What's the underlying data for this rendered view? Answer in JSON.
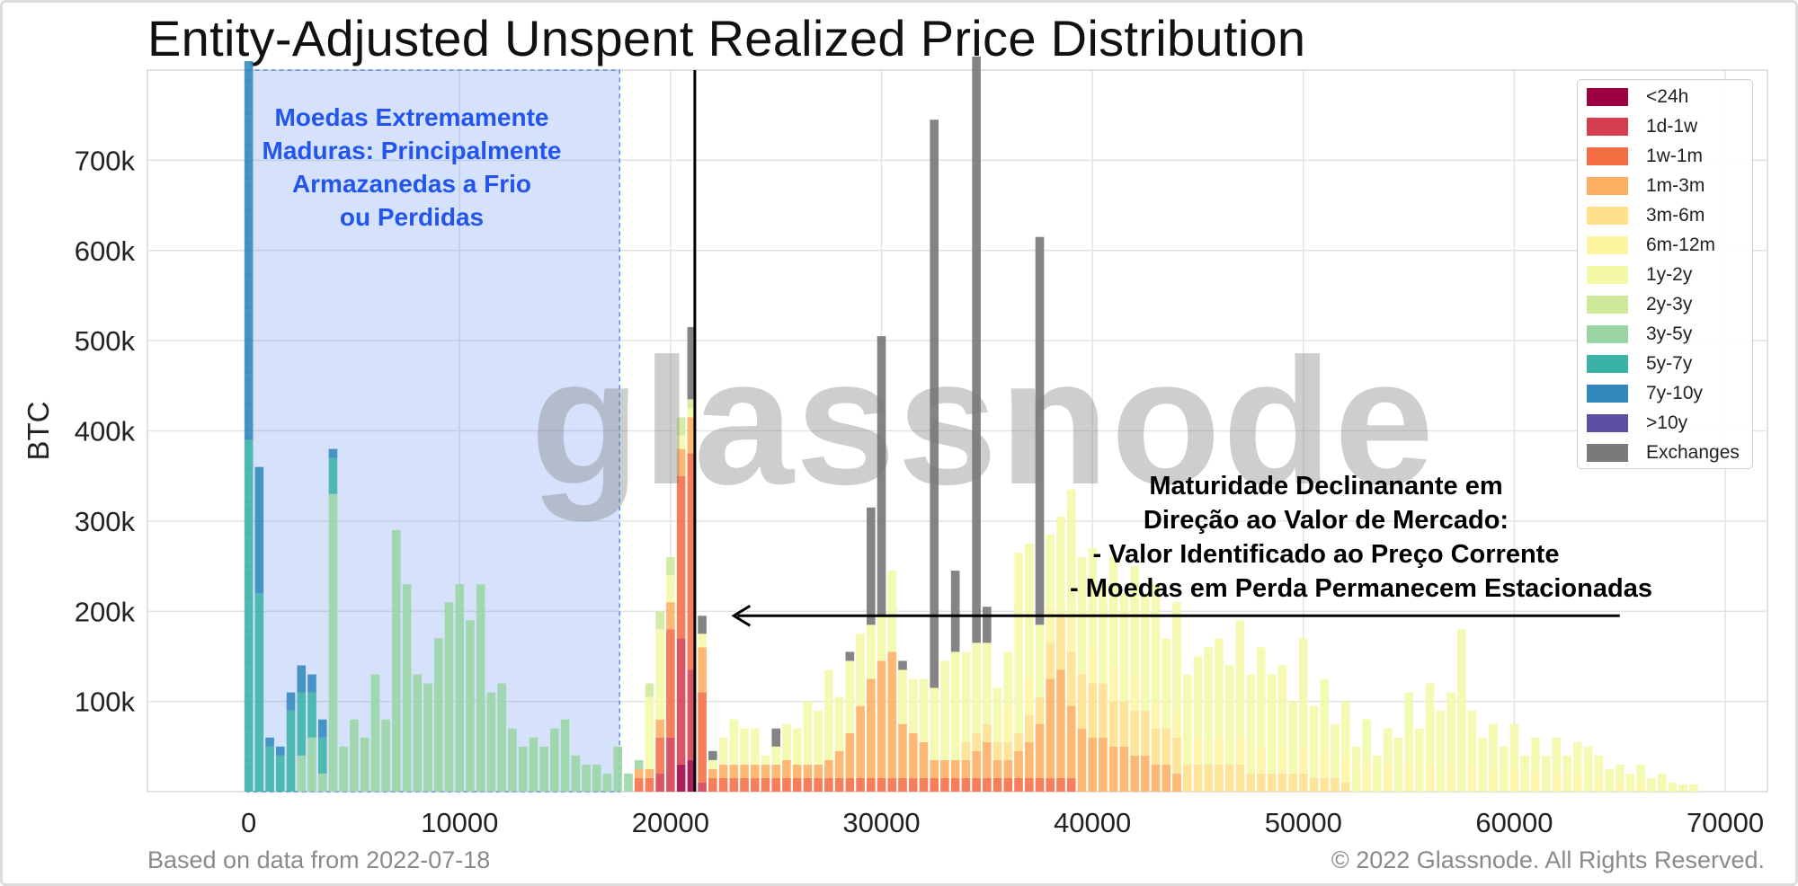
{
  "title": "Entity-Adjusted Unspent Realized Price Distribution",
  "footer": {
    "left": "Based on data from 2022-07-18",
    "right": "© 2022 Glassnode. All Rights Reserved."
  },
  "watermark": "glassnode",
  "colors": {
    "<24h": "#9e0142",
    "1d-1w": "#d53e4f",
    "1w-1m": "#f46d43",
    "1m-3m": "#fdae61",
    "3m-6m": "#fee08b",
    "6m-12m": "#fef5a0",
    "1y-2y": "#f4f9a8",
    "2y-3y": "#cfe99a",
    "3y-5y": "#99d5a4",
    "5y-7y": "#3ab3a6",
    "7y-10y": "#3288bd",
    ">10y": "#5e4fa2",
    "Exchanges": "#7a7a7a",
    "highlight": "#2255ee"
  },
  "annotations": {
    "left_lines": [
      "Moedas Extremamente",
      "Maduras: Principalmente",
      "Armazanedas a Frio",
      "ou Perdidas"
    ],
    "right_lines": [
      "Maturidade Declinanante em",
      "Direção ao Valor de Mercado:",
      "- Valor Identificado ao Preço Corrente",
      "- Moedas em Perda Permanecem Estacionadas"
    ]
  },
  "chart_data": {
    "type": "bar",
    "stacked": true,
    "title": "Entity-Adjusted Unspent Realized Price Distribution",
    "xlabel": "",
    "ylabel": "BTC",
    "xlim": [
      -4800,
      72000
    ],
    "ylim": [
      0,
      800000
    ],
    "xticks": [
      0,
      10000,
      20000,
      30000,
      40000,
      50000,
      60000,
      70000
    ],
    "yticks": [
      100000,
      200000,
      300000,
      400000,
      500000,
      600000,
      700000
    ],
    "ytick_labels": [
      "100k",
      "200k",
      "300k",
      "400k",
      "500k",
      "600k",
      "700k"
    ],
    "grid": true,
    "legend_position": "top-right",
    "bin_width": 500,
    "market_price_line_x": 21150,
    "highlight_region_x": [
      0,
      17500
    ],
    "arrow": {
      "from_x": 65000,
      "to_x": 23000,
      "y": 195000
    },
    "series": [
      {
        "name": "<24h",
        "x": [
          20500,
          21000
        ],
        "values": [
          30000,
          35000
        ]
      },
      {
        "name": "1d-1w",
        "x": [
          19500,
          20000,
          20500,
          21000,
          21500
        ],
        "values": [
          20000,
          60000,
          140000,
          100000,
          10000
        ]
      },
      {
        "name": "1w-1m",
        "x": [
          18500,
          19000,
          19500,
          20000,
          20500,
          21000,
          21500,
          22000,
          22500,
          23000,
          23500,
          24000,
          24500,
          25000,
          25500,
          26000,
          26500,
          27000,
          27500,
          28000,
          28500,
          29000,
          29500,
          30000,
          30500,
          31000,
          31500,
          32000,
          32500,
          33000,
          33500,
          34000,
          34500,
          35000,
          35500,
          36000,
          36500,
          37000,
          37500,
          38000,
          38500,
          39000
        ],
        "values": [
          15000,
          15000,
          40000,
          120000,
          180000,
          240000,
          100000,
          15000,
          15000,
          15000,
          15000,
          15000,
          15000,
          15000,
          15000,
          15000,
          15000,
          15000,
          15000,
          15000,
          15000,
          15000,
          15000,
          15000,
          15000,
          15000,
          15000,
          15000,
          15000,
          15000,
          15000,
          15000,
          15000,
          15000,
          15000,
          15000,
          15000,
          15000,
          15000,
          15000,
          15000,
          15000
        ]
      },
      {
        "name": "1m-3m",
        "x": [
          18500,
          19000,
          19500,
          20000,
          20500,
          21000,
          21500,
          22000,
          22500,
          23000,
          23500,
          24000,
          24500,
          25000,
          25500,
          26000,
          26500,
          27000,
          27500,
          28000,
          28500,
          29000,
          29500,
          30000,
          30500,
          31000,
          31500,
          32000,
          32500,
          33000,
          33500,
          34000,
          34500,
          35000,
          35500,
          36000,
          36500,
          37000,
          37500,
          38000,
          38500,
          39000,
          39500,
          40000,
          40500,
          41000,
          41500,
          42000,
          42500,
          43000,
          43500,
          44000
        ],
        "values": [
          10000,
          10000,
          20000,
          30000,
          30000,
          40000,
          50000,
          10000,
          15000,
          15000,
          15000,
          15000,
          15000,
          15000,
          20000,
          15000,
          15000,
          15000,
          20000,
          30000,
          50000,
          80000,
          110000,
          130000,
          140000,
          60000,
          50000,
          40000,
          20000,
          20000,
          20000,
          20000,
          30000,
          40000,
          20000,
          20000,
          30000,
          40000,
          60000,
          110000,
          120000,
          80000,
          70000,
          60000,
          60000,
          50000,
          50000,
          40000,
          40000,
          30000,
          30000,
          20000
        ]
      },
      {
        "name": "3m-6m",
        "x": [
          34000,
          34500,
          35000,
          35500,
          36000,
          36500,
          37000,
          37500,
          38000,
          38500,
          39000,
          39500,
          40000,
          40500,
          41000,
          41500,
          42000,
          42500,
          43000,
          43500,
          44000,
          44500,
          45000,
          45500,
          46000,
          46500,
          47000,
          47500,
          48000,
          48500,
          49000,
          49500,
          50000,
          50500,
          51000,
          51500,
          52000
        ],
        "values": [
          20000,
          20000,
          20000,
          20000,
          20000,
          20000,
          30000,
          30000,
          40000,
          60000,
          60000,
          60000,
          60000,
          60000,
          50000,
          50000,
          50000,
          50000,
          40000,
          40000,
          40000,
          30000,
          30000,
          30000,
          30000,
          30000,
          30000,
          20000,
          20000,
          20000,
          20000,
          20000,
          20000,
          15000,
          15000,
          15000,
          10000
        ]
      },
      {
        "name": "6m-12m",
        "x": [
          36000,
          37000,
          38000,
          39000,
          40000,
          41000,
          42000,
          43000,
          44000,
          45000,
          46000,
          47000,
          48000,
          49000,
          50000,
          51000,
          52000,
          53000,
          54000,
          55000,
          56000,
          57000,
          58000,
          59000,
          60000,
          61000,
          62000,
          63000,
          64000,
          65000,
          66000
        ],
        "values": [
          40000,
          40000,
          40000,
          40000,
          40000,
          40000,
          40000,
          30000,
          30000,
          30000,
          30000,
          30000,
          30000,
          30000,
          30000,
          30000,
          30000,
          30000,
          30000,
          30000,
          30000,
          30000,
          30000,
          25000,
          25000,
          20000,
          20000,
          20000,
          15000,
          10000,
          10000
        ]
      },
      {
        "name": "1y-2y",
        "x": [
          19000,
          19500,
          20000,
          20500,
          21000,
          21500,
          22000,
          22500,
          23000,
          23500,
          24000,
          24500,
          25000,
          25500,
          26000,
          26500,
          27000,
          27500,
          28000,
          28500,
          29000,
          29500,
          30000,
          30500,
          31000,
          31500,
          32000,
          32500,
          33000,
          33500,
          34000,
          34500,
          35000,
          35500,
          36000,
          36500,
          37000,
          37500,
          38000,
          38500,
          39000,
          39500,
          40000,
          40500,
          41000,
          41500,
          42000,
          42500,
          43000,
          43500,
          44000,
          44500,
          45000,
          45500,
          46000,
          46500,
          47000,
          47500,
          48000,
          48500,
          49000,
          49500,
          50000,
          50500,
          51000,
          51500,
          52000,
          52500,
          53000,
          53500,
          54000,
          54500,
          55000,
          55500,
          56000,
          56500,
          57000,
          57500,
          58000,
          58500,
          59000,
          59500,
          60000,
          60500,
          61000,
          61500,
          62000,
          62500,
          63000,
          63500,
          64000,
          64500,
          65000,
          65500,
          66000,
          66500,
          67000,
          67500,
          68000,
          68500
        ],
        "values": [
          80000,
          100000,
          30000,
          15000,
          10000,
          15000,
          10000,
          30000,
          50000,
          40000,
          40000,
          10000,
          20000,
          40000,
          40000,
          70000,
          60000,
          100000,
          60000,
          80000,
          80000,
          60000,
          50000,
          90000,
          60000,
          60000,
          70000,
          80000,
          110000,
          120000,
          100000,
          100000,
          90000,
          60000,
          60000,
          200000,
          150000,
          80000,
          80000,
          110000,
          140000,
          130000,
          110000,
          110000,
          120000,
          120000,
          120000,
          130000,
          130000,
          100000,
          120000,
          100000,
          90000,
          130000,
          110000,
          110000,
          130000,
          110000,
          110000,
          110000,
          90000,
          80000,
          120000,
          80000,
          80000,
          60000,
          60000,
          50000,
          50000,
          40000,
          40000,
          60000,
          80000,
          70000,
          90000,
          90000,
          80000,
          180000,
          60000,
          60000,
          50000,
          50000,
          50000,
          40000,
          40000,
          40000,
          40000,
          40000,
          35000,
          50000,
          25000,
          25000,
          20000,
          20000,
          20000,
          15000,
          20000,
          10000,
          8000,
          8000
        ]
      },
      {
        "name": "2y-3y",
        "x": [
          19000,
          19500,
          20000,
          20500,
          21000
        ],
        "values": [
          15000,
          20000,
          20000,
          20000,
          10000
        ]
      },
      {
        "name": "3y-5y",
        "x": [
          2500,
          3000,
          3500,
          4000,
          4500,
          5000,
          5500,
          6000,
          6500,
          7000,
          7500,
          8000,
          8500,
          9000,
          9500,
          10000,
          10500,
          11000,
          11500,
          12000,
          12500,
          13000,
          13500,
          14000,
          14500,
          15000,
          15500,
          16000,
          16500,
          17000,
          17500,
          18000,
          18500
        ],
        "values": [
          40000,
          60000,
          20000,
          330000,
          50000,
          80000,
          60000,
          130000,
          80000,
          290000,
          230000,
          130000,
          120000,
          170000,
          210000,
          230000,
          190000,
          230000,
          110000,
          120000,
          70000,
          50000,
          60000,
          50000,
          70000,
          80000,
          40000,
          30000,
          30000,
          20000,
          50000,
          20000,
          10000
        ]
      },
      {
        "name": "5y-7y",
        "x": [
          0,
          500,
          1000,
          1500,
          2000,
          2500,
          3000,
          3500,
          4000
        ],
        "values": [
          390000,
          220000,
          50000,
          40000,
          90000,
          70000,
          50000,
          40000,
          40000
        ]
      },
      {
        "name": "7y-10y",
        "x": [
          0,
          500,
          1000,
          1500,
          2000,
          2500,
          3000,
          3500,
          4000
        ],
        "values": [
          420000,
          140000,
          10000,
          10000,
          20000,
          30000,
          20000,
          20000,
          10000
        ]
      },
      {
        "name": ">10y",
        "x": [],
        "values": []
      },
      {
        "name": "Exchanges",
        "x": [
          21000,
          21500,
          22000,
          25000,
          28500,
          29500,
          30000,
          31000,
          32500,
          33500,
          34500,
          35000,
          36500,
          37500
        ],
        "values": [
          80000,
          20000,
          10000,
          20000,
          10000,
          130000,
          310000,
          10000,
          630000,
          90000,
          650000,
          40000,
          0,
          430000
        ]
      }
    ]
  },
  "legend": {
    "items": [
      "<24h",
      "1d-1w",
      "1w-1m",
      "1m-3m",
      "3m-6m",
      "6m-12m",
      "1y-2y",
      "2y-3y",
      "3y-5y",
      "5y-7y",
      "7y-10y",
      ">10y",
      "Exchanges"
    ]
  }
}
